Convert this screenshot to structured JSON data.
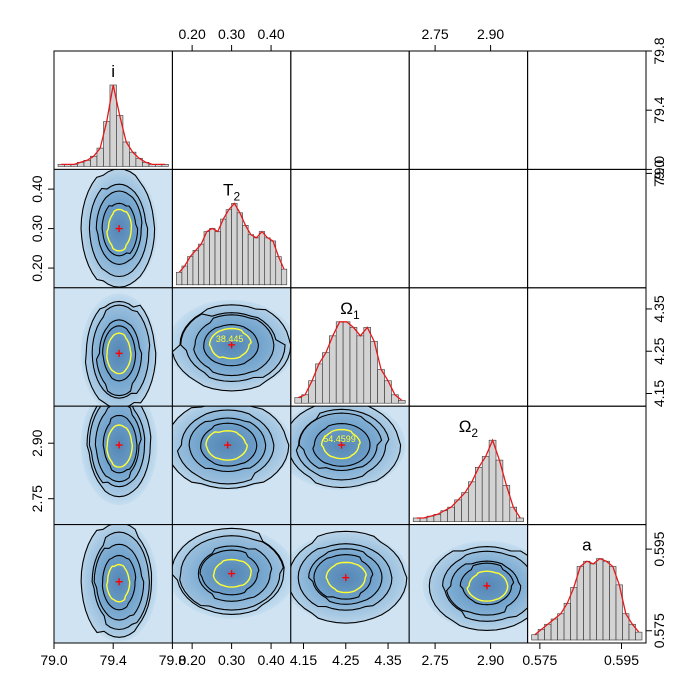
{
  "chart_data": {
    "type": "corner-plot",
    "parameters": [
      {
        "key": "i",
        "label": "i",
        "sub": "",
        "range": [
          79.0,
          79.8
        ],
        "ticks": [
          79.0,
          79.4,
          79.8
        ],
        "tick_labels": [
          "79.0",
          "79.4",
          "79.8"
        ],
        "hist": [
          1,
          1,
          1,
          2,
          3,
          5,
          9,
          22,
          40,
          25,
          12,
          7,
          4,
          2,
          1,
          1,
          1
        ]
      },
      {
        "key": "T2",
        "label": "T",
        "sub": "2",
        "range": [
          0.15,
          0.45
        ],
        "ticks": [
          0.2,
          0.3,
          0.4
        ],
        "tick_labels": [
          "0.20",
          "0.30",
          "0.40"
        ],
        "hist": [
          4,
          6,
          9,
          11,
          13,
          17,
          18,
          17,
          21,
          24,
          26,
          23,
          19,
          16,
          15,
          17,
          15,
          14,
          9,
          5
        ]
      },
      {
        "key": "O1",
        "label": "Ω",
        "sub": "1",
        "range": [
          4.12,
          4.4
        ],
        "ticks": [
          4.15,
          4.25,
          4.35
        ],
        "tick_labels": [
          "4.15",
          "4.25",
          "4.35"
        ],
        "hist": [
          2,
          3,
          8,
          14,
          18,
          24,
          29,
          29,
          27,
          24,
          27,
          22,
          12,
          8,
          3,
          1
        ]
      },
      {
        "key": "O2",
        "label": "Ω",
        "sub": "2",
        "range": [
          2.68,
          3.0
        ],
        "ticks": [
          2.75,
          2.9
        ],
        "tick_labels": [
          "2.75",
          "2.90"
        ],
        "hist": [
          2,
          2,
          3,
          4,
          6,
          8,
          12,
          16,
          22,
          30,
          36,
          45,
          34,
          20,
          8,
          2
        ]
      },
      {
        "key": "a",
        "label": "a",
        "sub": "",
        "range": [
          0.572,
          0.601
        ],
        "ticks": [
          0.575,
          0.595
        ],
        "tick_labels": [
          "0.575",
          "0.595"
        ],
        "hist": [
          2,
          4,
          6,
          8,
          10,
          14,
          20,
          28,
          30,
          29,
          31,
          30,
          28,
          21,
          10,
          6,
          3
        ]
      }
    ],
    "diagonal_extra_ticks": [
      {
        "panel": "i",
        "side": "right",
        "ticks": [
          79.0,
          79.4,
          79.8
        ],
        "tick_labels": [
          "79.0",
          "79.4",
          "79.8"
        ]
      },
      {
        "panel": "T2",
        "side": "right",
        "ticks": [
          79.0
        ],
        "tick_labels": [
          "79.0"
        ]
      }
    ],
    "pair_centers": {
      "T2-i": [
        79.44,
        0.3
      ],
      "O1-i": [
        79.44,
        4.245
      ],
      "O1-T2": [
        0.3,
        4.265
      ],
      "O2-i": [
        79.44,
        2.895
      ],
      "O2-T2": [
        0.29,
        2.895
      ],
      "O2-O1": [
        4.24,
        2.895
      ],
      "a-i": [
        79.44,
        0.587
      ],
      "a-T2": [
        0.3,
        0.589
      ],
      "a-O1": [
        4.25,
        0.588
      ],
      "a-O2": [
        2.89,
        0.586
      ]
    },
    "contour_labels": [
      {
        "pair": "O1-T2",
        "text": "38.445"
      },
      {
        "pair": "O2-O1",
        "text": "54.4599"
      }
    ],
    "colors": {
      "histogram_fill": "#d3d3d3",
      "density_line": "#e31a1c",
      "contour": "#000000",
      "highlight_contour": "#ffff33",
      "center_marker": "#ff0000",
      "heat_low": "#cfe3f2",
      "heat_high": "#1f5f9a"
    }
  }
}
